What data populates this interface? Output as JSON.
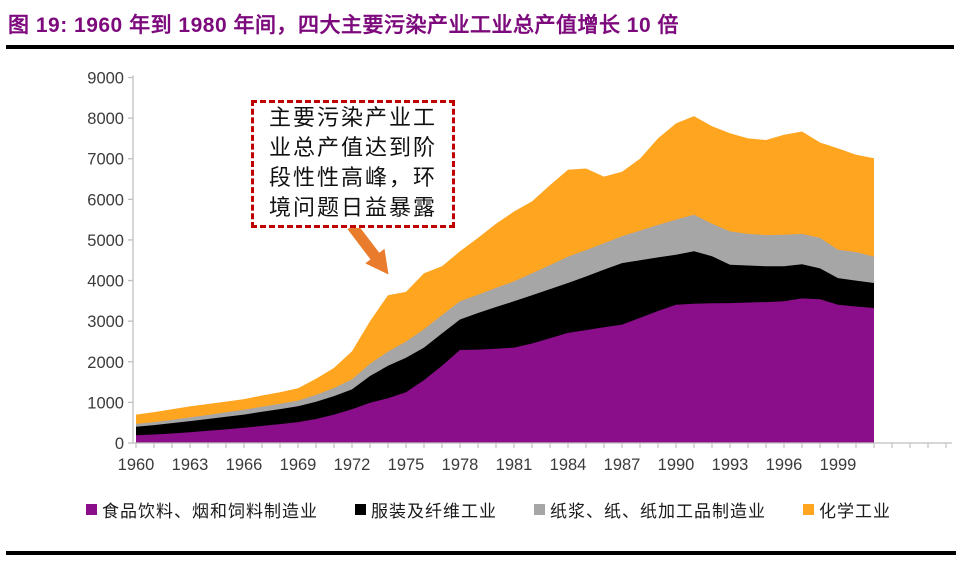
{
  "title": "图 19: 1960 年到 1980 年间，四大主要污染产业工业总产值增长 10 倍",
  "annotation": {
    "lines": [
      "主要污染产业工",
      "业总产值达到阶",
      "段性性高峰，环",
      "境问题日益暴露"
    ],
    "border_color": "#C00000",
    "arrow_color": "#E87C2C"
  },
  "colors": {
    "title_text": "#7D0A7D",
    "axis_line": "#BFBFBF",
    "axis_text": "#3B3B3B",
    "divider": "#000000"
  },
  "chart_data": {
    "type": "area",
    "stacked": true,
    "title": "",
    "xlabel": "",
    "ylabel": "",
    "grid": false,
    "legend_position": "bottom",
    "ylim": [
      0,
      9000
    ],
    "y_ticks": [
      0,
      1000,
      2000,
      3000,
      4000,
      5000,
      6000,
      7000,
      8000,
      9000
    ],
    "x_tick_labels": [
      "1960",
      "1963",
      "1966",
      "1969",
      "1972",
      "1975",
      "1978",
      "1981",
      "1984",
      "1987",
      "1990",
      "1993",
      "1996",
      "1999"
    ],
    "x": [
      1960,
      1961,
      1962,
      1963,
      1964,
      1965,
      1966,
      1967,
      1968,
      1969,
      1970,
      1971,
      1972,
      1973,
      1974,
      1975,
      1976,
      1977,
      1978,
      1979,
      1980,
      1981,
      1982,
      1983,
      1984,
      1985,
      1986,
      1987,
      1988,
      1989,
      1990,
      1991,
      1992,
      1993,
      1994,
      1995,
      1996,
      1997,
      1998,
      1999,
      2000,
      2001
    ],
    "series": [
      {
        "name": "食品饮料、烟和饲料制造业",
        "color": "#8A0D8A",
        "values": [
          190,
          210,
          235,
          265,
          300,
          335,
          375,
          420,
          465,
          515,
          590,
          700,
          830,
          990,
          1100,
          1250,
          1550,
          1900,
          2290,
          2300,
          2320,
          2350,
          2450,
          2580,
          2710,
          2780,
          2850,
          2915,
          3080,
          3250,
          3405,
          3430,
          3440,
          3445,
          3460,
          3470,
          3490,
          3560,
          3540,
          3405,
          3360,
          3325
        ]
      },
      {
        "name": "服装及纤维工业",
        "color": "#000000",
        "values": [
          210,
          230,
          255,
          275,
          290,
          310,
          325,
          350,
          370,
          390,
          425,
          455,
          490,
          660,
          800,
          850,
          800,
          800,
          750,
          900,
          1030,
          1140,
          1190,
          1210,
          1230,
          1320,
          1420,
          1515,
          1420,
          1320,
          1230,
          1290,
          1160,
          945,
          910,
          880,
          860,
          840,
          760,
          655,
          640,
          615
        ]
      },
      {
        "name": "纸浆、纸、纸加工品制造业",
        "color": "#A6A6A6",
        "values": [
          70,
          75,
          80,
          90,
          100,
          110,
          120,
          125,
          130,
          140,
          170,
          200,
          245,
          300,
          350,
          400,
          450,
          450,
          450,
          450,
          470,
          490,
          540,
          590,
          650,
          650,
          650,
          660,
          730,
          800,
          865,
          900,
          800,
          820,
          780,
          770,
          780,
          750,
          750,
          700,
          700,
          650
        ]
      },
      {
        "name": "化学工业",
        "color": "#FFA51F",
        "values": [
          230,
          245,
          260,
          270,
          270,
          265,
          260,
          275,
          285,
          305,
          395,
          495,
          695,
          1050,
          1390,
          1220,
          1380,
          1200,
          1230,
          1400,
          1580,
          1720,
          1770,
          1970,
          2140,
          2010,
          1640,
          1590,
          1770,
          2130,
          2370,
          2430,
          2400,
          2415,
          2350,
          2340,
          2460,
          2520,
          2350,
          2495,
          2400,
          2420
        ]
      }
    ]
  }
}
